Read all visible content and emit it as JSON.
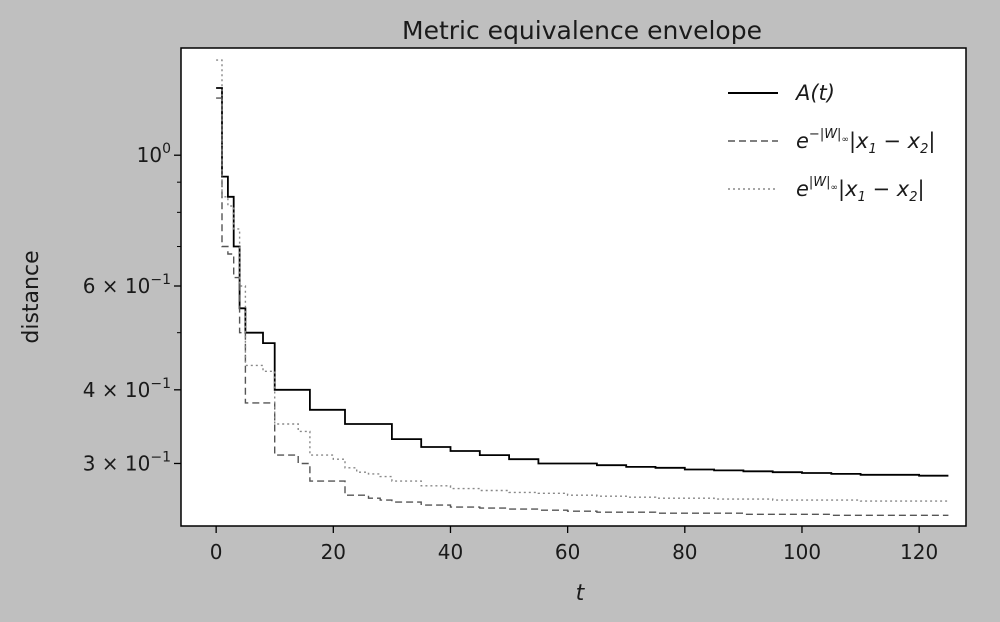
{
  "chart_data": {
    "type": "line",
    "title": "Metric equivalence envelope",
    "xlabel": "t",
    "ylabel": "distance",
    "xlim": [
      -6,
      128
    ],
    "ylim": [
      0.235,
      1.52
    ],
    "yscale": "log",
    "grid": false,
    "legend_position": "top-right",
    "x_ticks": [
      {
        "value": 0,
        "label": "0"
      },
      {
        "value": 20,
        "label": "20"
      },
      {
        "value": 40,
        "label": "40"
      },
      {
        "value": 60,
        "label": "60"
      },
      {
        "value": 80,
        "label": "80"
      },
      {
        "value": 100,
        "label": "100"
      },
      {
        "value": 120,
        "label": "120"
      }
    ],
    "y_ticks": [
      {
        "value": 1.0,
        "base": "10",
        "exp": "0"
      },
      {
        "value": 0.6,
        "base": "6 × 10",
        "exp": "−1"
      },
      {
        "value": 0.4,
        "base": "4 × 10",
        "exp": "−1"
      },
      {
        "value": 0.3,
        "base": "3 × 10",
        "exp": "−1"
      }
    ],
    "series": [
      {
        "name": "A(t)",
        "legend_label": {
          "main": "A(t)"
        },
        "color": "#000000",
        "dash": "solid",
        "width": 1.8,
        "x": [
          0,
          1,
          2,
          3,
          4,
          5,
          6,
          7,
          8,
          10,
          12,
          14,
          16,
          18,
          20,
          22,
          24,
          26,
          28,
          30,
          35,
          40,
          45,
          50,
          55,
          60,
          65,
          70,
          75,
          80,
          85,
          90,
          95,
          100,
          105,
          110,
          115,
          120,
          125
        ],
        "y": [
          1.3,
          0.92,
          0.85,
          0.7,
          0.55,
          0.5,
          0.5,
          0.5,
          0.48,
          0.4,
          0.4,
          0.4,
          0.37,
          0.37,
          0.37,
          0.35,
          0.35,
          0.35,
          0.35,
          0.33,
          0.32,
          0.315,
          0.31,
          0.305,
          0.3,
          0.3,
          0.298,
          0.296,
          0.295,
          0.293,
          0.292,
          0.291,
          0.29,
          0.289,
          0.288,
          0.287,
          0.287,
          0.286,
          0.286
        ]
      },
      {
        "name": "e^{-|W|∞}|x1 - x2|",
        "legend_label": {
          "pre": "e",
          "sup": "−|W|",
          "sub": "∞",
          "mid": "|x",
          "s1": "1",
          "dash": " − x",
          "s2": "2",
          "end": "|"
        },
        "color": "#555555",
        "dash": "7,4",
        "width": 1.4,
        "x": [
          0,
          1,
          2,
          3,
          4,
          5,
          6,
          7,
          8,
          10,
          12,
          14,
          16,
          18,
          20,
          22,
          24,
          26,
          28,
          30,
          35,
          40,
          45,
          50,
          55,
          60,
          65,
          70,
          75,
          80,
          85,
          90,
          95,
          100,
          105,
          110,
          115,
          120,
          125
        ],
        "y": [
          1.25,
          0.7,
          0.68,
          0.62,
          0.5,
          0.38,
          0.38,
          0.38,
          0.38,
          0.31,
          0.31,
          0.3,
          0.28,
          0.28,
          0.28,
          0.265,
          0.265,
          0.262,
          0.26,
          0.258,
          0.255,
          0.253,
          0.252,
          0.251,
          0.25,
          0.249,
          0.248,
          0.248,
          0.247,
          0.247,
          0.247,
          0.246,
          0.246,
          0.246,
          0.245,
          0.245,
          0.245,
          0.245,
          0.245
        ]
      },
      {
        "name": "e^{|W|∞}|x1 - x2|",
        "legend_label": {
          "pre": "e",
          "sup": "|W|",
          "sub": "∞",
          "mid": "|x",
          "s1": "1",
          "dash": " − x",
          "s2": "2",
          "end": "|"
        },
        "color": "#888888",
        "dash": "2,3",
        "width": 1.4,
        "x": [
          0,
          1,
          2,
          3,
          4,
          5,
          6,
          7,
          8,
          10,
          12,
          14,
          16,
          18,
          20,
          22,
          24,
          26,
          28,
          30,
          35,
          40,
          45,
          50,
          55,
          60,
          65,
          70,
          75,
          80,
          85,
          90,
          95,
          100,
          105,
          110,
          115,
          120,
          125
        ],
        "y": [
          1.45,
          0.85,
          0.82,
          0.75,
          0.6,
          0.44,
          0.44,
          0.44,
          0.43,
          0.35,
          0.35,
          0.34,
          0.31,
          0.31,
          0.305,
          0.295,
          0.29,
          0.288,
          0.285,
          0.28,
          0.275,
          0.272,
          0.27,
          0.268,
          0.267,
          0.265,
          0.264,
          0.263,
          0.262,
          0.262,
          0.261,
          0.261,
          0.26,
          0.26,
          0.26,
          0.259,
          0.259,
          0.259,
          0.259
        ]
      }
    ]
  }
}
